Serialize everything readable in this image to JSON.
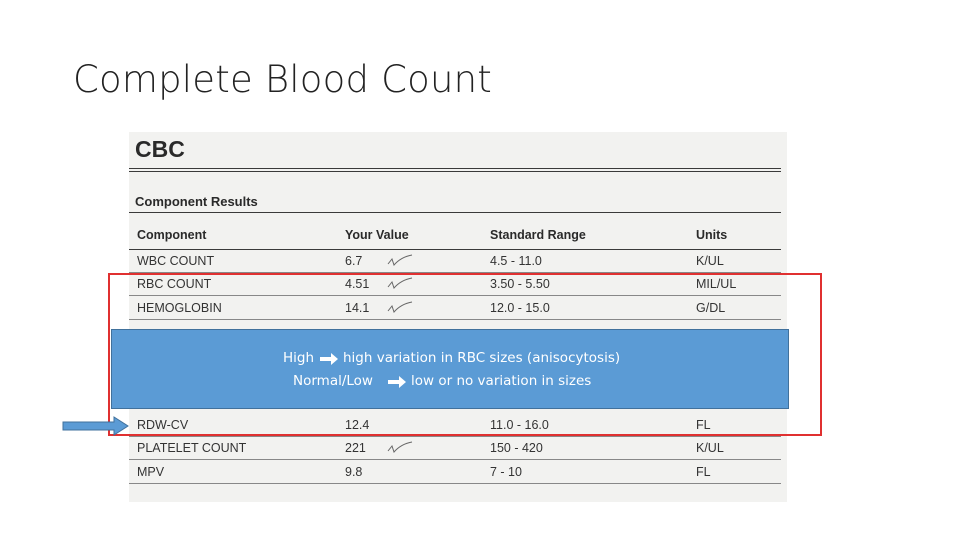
{
  "slide": {
    "title": "Complete Blood Count"
  },
  "report": {
    "title": "CBC",
    "section": "Component Results",
    "columns": {
      "component": "Component",
      "value": "Your Value",
      "range": "Standard Range",
      "units": "Units"
    },
    "rows": [
      {
        "component": "WBC COUNT",
        "value": "6.7",
        "range": "4.5 - 11.0",
        "units": "K/UL"
      },
      {
        "component": "RBC COUNT",
        "value": "4.51",
        "range": "3.50 - 5.50",
        "units": "MIL/UL"
      },
      {
        "component": "HEMOGLOBIN",
        "value": "14.1",
        "range": "12.0 - 15.0",
        "units": "G/DL"
      },
      {
        "component": "RDW-CV",
        "value": "12.4",
        "range": "11.0 - 16.0",
        "units": "FL"
      },
      {
        "component": "PLATELET COUNT",
        "value": "221",
        "range": "150 - 420",
        "units": "K/UL"
      },
      {
        "component": "MPV",
        "value": "9.8",
        "range": "7 - 10",
        "units": "FL"
      }
    ]
  },
  "callout": {
    "line1_left": "High",
    "line1_right": "high variation in RBC sizes (anisocytosis)",
    "line2_left": "Normal/Low",
    "line2_right": "low or no variation in sizes"
  },
  "colors": {
    "highlight_border": "#e03030",
    "callout_fill": "#5b9bd5",
    "pointer_arrow": "#5b9bd5"
  }
}
